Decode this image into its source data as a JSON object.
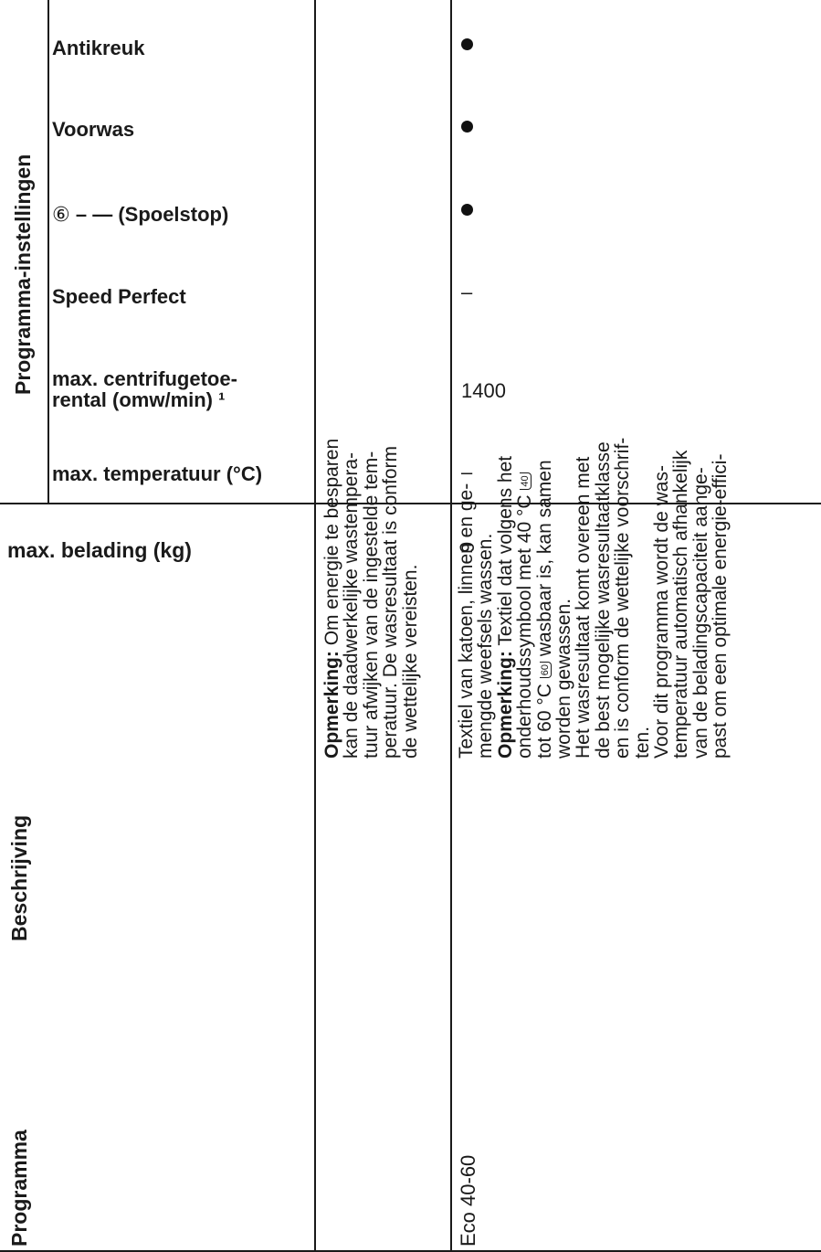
{
  "settings": {
    "section_label": "Programma-instellingen",
    "rows": [
      {
        "label": "Antikreuk",
        "value": "•"
      },
      {
        "label": "Voorwas",
        "value": "•"
      },
      {
        "label_symbol": "⑥",
        "label": "– — (Spoelstop)",
        "value": "•"
      },
      {
        "label": "Speed Perfect",
        "value": "–"
      },
      {
        "label_line1": "max. centrifugetoe-",
        "label_line2": "rental (omw/min) ¹",
        "value": "1400"
      },
      {
        "label": "max. temperatuur (°C)",
        "value": "–"
      }
    ]
  },
  "load": {
    "label": "max. belading (kg)",
    "value": "9"
  },
  "headers": {
    "programma": "Programma",
    "beschrijving": "Beschrijving"
  },
  "program": {
    "name": "Eco 40-60",
    "note_col1": {
      "bold": "Opmerking:",
      "lines": [
        " Om energie te besparen",
        "kan de daadwerkelijke wastempera-",
        "tuur afwijken van de ingestelde tem-",
        "peratuur. De wasresultaat is conform",
        "de wettelijke vereisten."
      ]
    },
    "description": {
      "lines_a": [
        "Textiel van katoen, linnen en ge-",
        "mengde weefsels wassen."
      ],
      "note_bold": "Opmerking:",
      "note_first": " Textiel dat volgens het",
      "lines_b": [
        "onderhoudssymbool met 40 °C",
        "tot 60 °C",
        "wasbaar is, kan samen",
        "worden gewassen."
      ],
      "symbol_40": "40",
      "symbol_60": "60",
      "lines_c": [
        "Het wasresultaat komt overeen met",
        "de best mogelijke wasresultaatklasse",
        "en is conform de wettelijke voorschrif-",
        "ten.",
        "Voor dit programma wordt de was-",
        "temperatuur automatisch afhankelijk",
        "van de beladingscapaciteit aange-",
        "past om een optimale energie-effici-"
      ]
    }
  }
}
